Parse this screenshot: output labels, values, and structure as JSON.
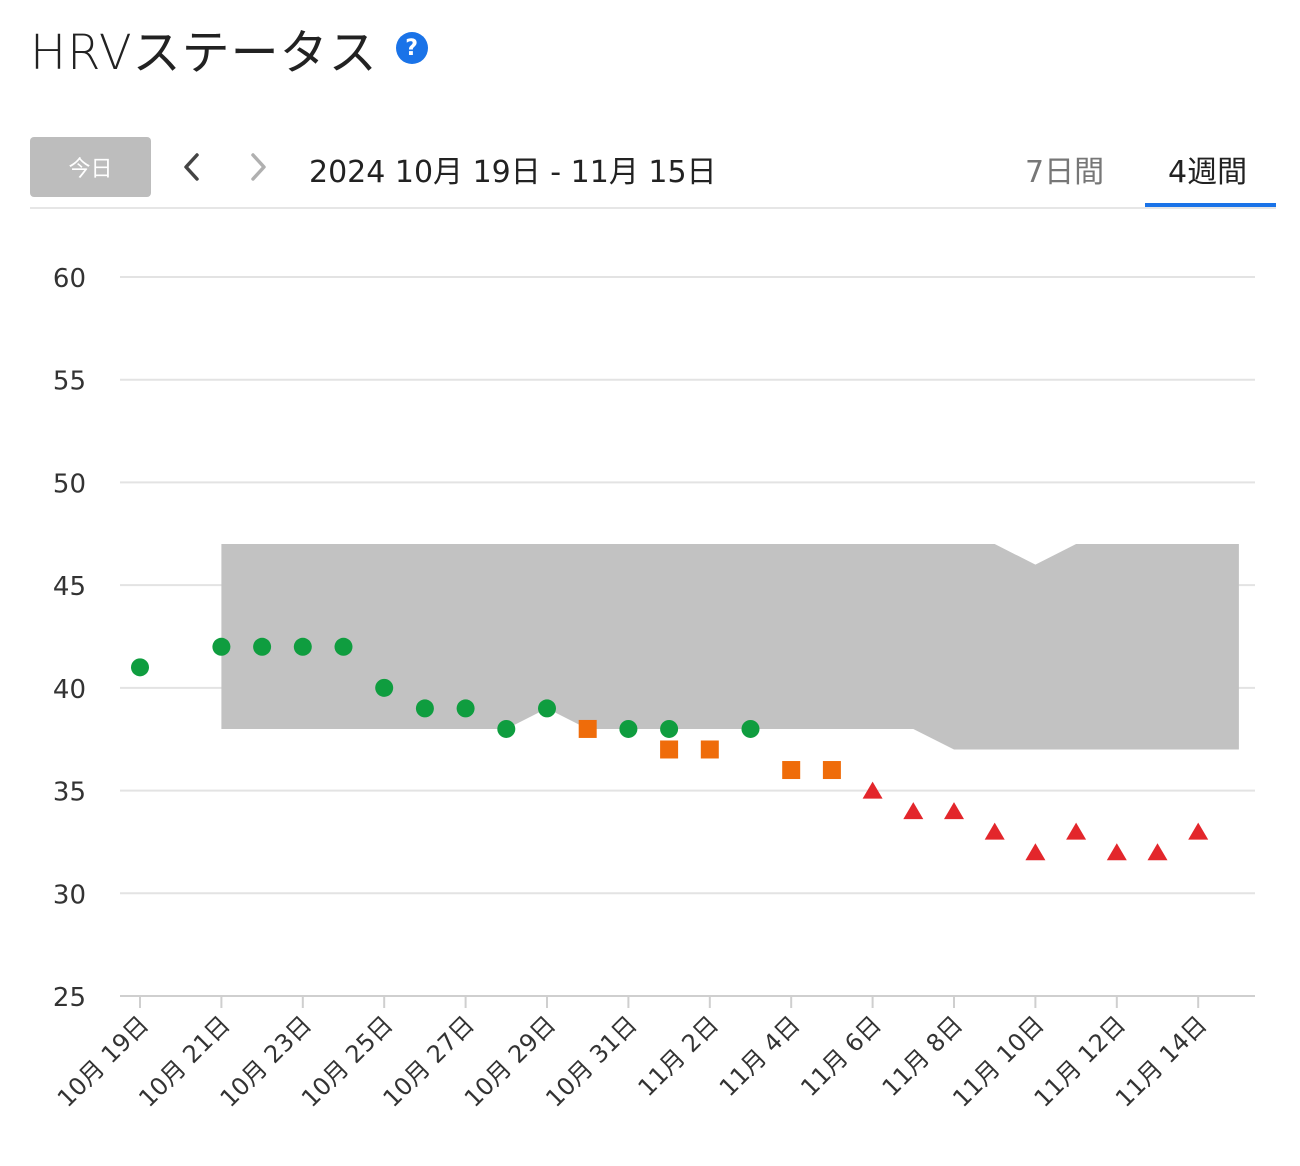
{
  "header": {
    "title": "HRVステータス",
    "help_icon": "question-circle-icon",
    "help_glyph": "?"
  },
  "toolbar": {
    "today_label": "今日",
    "prev_icon": "chevron-left-icon",
    "next_icon": "chevron-right-icon",
    "date_range": "2024 10月 19日 - 11月 15日",
    "tabs": [
      {
        "label": "7日間",
        "active": false
      },
      {
        "label": "4週間",
        "active": true
      }
    ]
  },
  "colors": {
    "accent": "#1a73e8",
    "balanced": "#0f9d3f",
    "unbalanced": "#ef6c0a",
    "low": "#e3262b",
    "baseline_band": "#c2c2c2"
  },
  "chart_data": {
    "type": "scatter",
    "ylim": [
      25,
      60
    ],
    "yticks": [
      25,
      30,
      35,
      40,
      45,
      50,
      55,
      60
    ],
    "x_tick_labels": [
      "10月 19日",
      "10月 21日",
      "10月 23日",
      "10月 25日",
      "10月 27日",
      "10月 29日",
      "10月 31日",
      "11月 2日",
      "11月 4日",
      "11月 6日",
      "11月 8日",
      "11月 10日",
      "11月 12日",
      "11月 14日"
    ],
    "dates": [
      "10月 19日",
      "10月 20日",
      "10月 21日",
      "10月 22日",
      "10月 23日",
      "10月 24日",
      "10月 25日",
      "10月 26日",
      "10月 27日",
      "10月 28日",
      "10月 29日",
      "10月 30日",
      "10月 31日",
      "11月 1日",
      "11月 2日",
      "11月 3日",
      "11月 4日",
      "11月 5日",
      "11月 6日",
      "11月 7日",
      "11月 8日",
      "11月 9日",
      "11月 10日",
      "11月 11日",
      "11月 12日",
      "11月 13日",
      "11月 14日",
      "11月 15日"
    ],
    "baseline_band": {
      "start_date": "10月 21日",
      "end_date": "11月 15日",
      "upper": [
        47,
        47,
        47,
        47,
        47,
        47,
        47,
        47,
        47,
        47,
        47,
        47,
        47,
        47,
        47,
        47,
        47,
        47,
        47,
        47,
        46,
        47,
        47,
        47,
        47,
        47
      ],
      "lower": [
        38,
        38,
        38,
        38,
        38,
        38,
        38,
        38,
        39,
        38,
        38,
        38,
        38,
        38,
        38,
        38,
        38,
        38,
        37,
        37,
        37,
        37,
        37,
        37,
        37,
        37
      ]
    },
    "series": [
      {
        "status": "balanced",
        "marker": "circle",
        "points": [
          [
            "10月 19日",
            41
          ],
          [
            "10月 21日",
            42
          ],
          [
            "10月 22日",
            42
          ],
          [
            "10月 23日",
            42
          ],
          [
            "10月 24日",
            42
          ],
          [
            "10月 25日",
            40
          ],
          [
            "10月 26日",
            39
          ],
          [
            "10月 27日",
            39
          ],
          [
            "10月 28日",
            38
          ],
          [
            "10月 29日",
            39
          ],
          [
            "10月 31日",
            38
          ],
          [
            "11月 1日",
            38
          ],
          [
            "11月 3日",
            38
          ]
        ]
      },
      {
        "status": "unbalanced",
        "marker": "square",
        "points": [
          [
            "10月 30日",
            38
          ],
          [
            "11月 1日",
            37
          ],
          [
            "11月 2日",
            37
          ],
          [
            "11月 4日",
            36
          ],
          [
            "11月 5日",
            36
          ]
        ]
      },
      {
        "status": "low",
        "marker": "triangle",
        "points": [
          [
            "11月 6日",
            35
          ],
          [
            "11月 7日",
            34
          ],
          [
            "11月 8日",
            34
          ],
          [
            "11月 9日",
            33
          ],
          [
            "11月 10日",
            32
          ],
          [
            "11月 11日",
            33
          ],
          [
            "11月 12日",
            32
          ],
          [
            "11月 13日",
            32
          ],
          [
            "11月 14日",
            33
          ]
        ]
      }
    ]
  }
}
